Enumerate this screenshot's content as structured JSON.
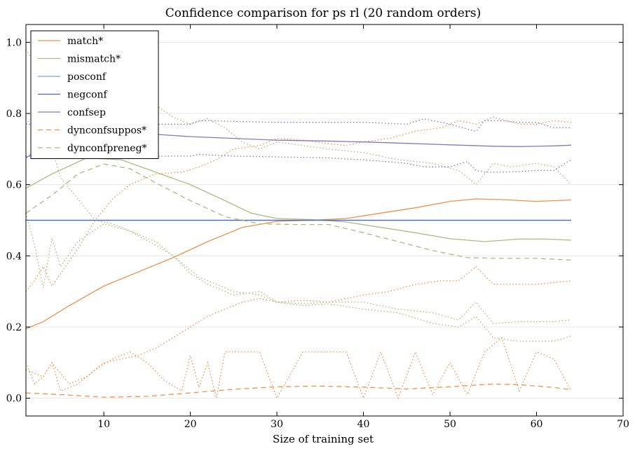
{
  "chart_data": {
    "type": "line",
    "title": "Confidence comparison for ps rl (20 random orders)",
    "xlabel": "Size of training set",
    "ylabel": "",
    "xlim": [
      1,
      70
    ],
    "ylim": [
      -0.05,
      1.05
    ],
    "xticks": [
      10,
      20,
      30,
      40,
      50,
      60,
      70
    ],
    "yticks": [
      0.0,
      0.2,
      0.4,
      0.6,
      0.8,
      1.0
    ],
    "xtick_labels": [
      "10",
      "20",
      "30",
      "40",
      "50",
      "60",
      "70"
    ],
    "ytick_labels": [
      "0.0",
      "0.2",
      "0.4",
      "0.6",
      "0.8",
      "1.0"
    ],
    "grid": "horizontal",
    "legend_position": "top-left",
    "series": [
      {
        "name": "match*",
        "color": "#f0914a",
        "style": "solid",
        "x": [
          1,
          3,
          6,
          10,
          14,
          18,
          22,
          26,
          30,
          34,
          38,
          42,
          46,
          50,
          53,
          56,
          60,
          64
        ],
        "y": [
          0.195,
          0.215,
          0.26,
          0.315,
          0.355,
          0.395,
          0.44,
          0.48,
          0.497,
          0.5,
          0.505,
          0.52,
          0.535,
          0.553,
          0.56,
          0.558,
          0.553,
          0.557
        ]
      },
      {
        "name": "mismatch*",
        "color": "#a9bc82",
        "style": "solid",
        "x": [
          1,
          4,
          8,
          12,
          16,
          20,
          24,
          27,
          30,
          34,
          38,
          42,
          46,
          50,
          54,
          58,
          61,
          64
        ],
        "y": [
          0.59,
          0.63,
          0.675,
          0.67,
          0.635,
          0.6,
          0.555,
          0.52,
          0.505,
          0.502,
          0.495,
          0.48,
          0.465,
          0.448,
          0.44,
          0.447,
          0.447,
          0.444
        ]
      },
      {
        "name": "posconf",
        "color": "#7aa7c7",
        "style": "solid",
        "x": [
          1,
          64
        ],
        "y": [
          0.5,
          0.5
        ]
      },
      {
        "name": "negconf",
        "color": "#4466cc",
        "style": "solid",
        "x": [
          1,
          64
        ],
        "y": [
          0.5,
          0.5
        ]
      },
      {
        "name": "confsep",
        "color": "#8877bb",
        "style": "solid",
        "x": [
          1,
          5,
          10,
          15,
          20,
          25,
          30,
          35,
          40,
          45,
          50,
          55,
          58,
          62,
          64
        ],
        "y": [
          0.675,
          0.74,
          0.745,
          0.743,
          0.735,
          0.73,
          0.725,
          0.723,
          0.72,
          0.716,
          0.712,
          0.708,
          0.707,
          0.709,
          0.711
        ]
      },
      {
        "name": "dynconfsuppos*",
        "color": "#f0914a",
        "style": "dashed",
        "x": [
          1,
          5,
          10,
          15,
          20,
          25,
          30,
          35,
          40,
          45,
          50,
          55,
          58,
          62,
          64
        ],
        "y": [
          0.015,
          0.01,
          0.003,
          0.005,
          0.015,
          0.025,
          0.032,
          0.034,
          0.031,
          0.026,
          0.032,
          0.04,
          0.038,
          0.03,
          0.024
        ]
      },
      {
        "name": "dynconfpreneg*",
        "color": "#a9bc82",
        "style": "dashed",
        "x": [
          1,
          4,
          7,
          10,
          13,
          16,
          20,
          24,
          28,
          32,
          36,
          40,
          44,
          48,
          52,
          56,
          60,
          64
        ],
        "y": [
          0.52,
          0.57,
          0.63,
          0.658,
          0.645,
          0.605,
          0.555,
          0.51,
          0.49,
          0.488,
          0.488,
          0.465,
          0.44,
          0.415,
          0.395,
          0.393,
          0.393,
          0.388
        ]
      }
    ],
    "bands": [
      {
        "color": "#f0914a",
        "x": [
          1,
          2,
          3,
          4,
          5,
          7,
          9,
          11,
          13,
          16,
          19,
          21,
          23,
          25,
          28,
          30,
          33,
          36,
          38,
          40,
          43,
          46,
          49,
          51,
          53,
          55,
          58,
          60,
          62,
          64
        ],
        "y": [
          0.3,
          0.33,
          0.37,
          0.315,
          0.35,
          0.42,
          0.5,
          0.56,
          0.6,
          0.63,
          0.635,
          0.65,
          0.67,
          0.7,
          0.71,
          0.73,
          0.725,
          0.715,
          0.71,
          0.72,
          0.73,
          0.75,
          0.76,
          0.78,
          0.77,
          0.79,
          0.77,
          0.77,
          0.78,
          0.775
        ]
      },
      {
        "color": "#f0914a",
        "x": [
          1,
          2,
          3,
          4,
          6,
          8,
          10,
          12,
          14,
          16,
          18,
          20,
          22,
          24,
          26,
          28,
          30,
          33,
          36,
          38,
          40,
          43,
          46,
          49,
          51,
          53,
          55,
          58,
          60,
          62,
          64
        ],
        "y": [
          0.08,
          0.07,
          0.06,
          0.1,
          0.04,
          0.06,
          0.1,
          0.11,
          0.12,
          0.14,
          0.17,
          0.2,
          0.23,
          0.25,
          0.27,
          0.28,
          0.27,
          0.275,
          0.27,
          0.28,
          0.29,
          0.3,
          0.32,
          0.33,
          0.33,
          0.37,
          0.32,
          0.32,
          0.32,
          0.325,
          0.33
        ]
      },
      {
        "color": "#f0914a",
        "x": [
          1,
          2,
          3,
          4,
          5,
          7,
          9,
          11,
          13,
          15,
          17,
          19,
          20,
          21,
          22,
          23,
          24,
          26,
          28,
          30,
          33,
          36,
          38,
          40,
          42,
          44,
          46,
          48,
          50,
          52,
          54,
          56,
          58,
          60,
          62,
          64
        ],
        "y": [
          0.1,
          0.04,
          0.06,
          0.1,
          0.02,
          0.04,
          0.08,
          0.11,
          0.13,
          0.1,
          0.05,
          0.02,
          0.12,
          0.03,
          0.1,
          0.0,
          0.13,
          0.13,
          0.13,
          0.0,
          0.13,
          0.13,
          0.13,
          0.0,
          0.13,
          0.0,
          0.13,
          0.01,
          0.1,
          0.01,
          0.13,
          0.17,
          0.02,
          0.13,
          0.11,
          0.02
        ]
      },
      {
        "color": "#a9bc82",
        "x": [
          1,
          2,
          3,
          4,
          5,
          7,
          9,
          11,
          13,
          16,
          19,
          21,
          23,
          25,
          28,
          30,
          33,
          36,
          40,
          44,
          48,
          51,
          53,
          55,
          58,
          60,
          62,
          64
        ],
        "y": [
          0.98,
          0.94,
          0.75,
          0.7,
          0.62,
          0.56,
          0.5,
          0.49,
          0.47,
          0.44,
          0.38,
          0.34,
          0.32,
          0.3,
          0.29,
          0.27,
          0.265,
          0.27,
          0.27,
          0.25,
          0.24,
          0.22,
          0.27,
          0.21,
          0.215,
          0.215,
          0.215,
          0.22
        ]
      },
      {
        "color": "#a9bc82",
        "x": [
          1,
          2,
          3,
          4,
          5,
          7,
          10,
          13,
          16,
          18,
          20,
          22,
          25,
          28,
          30,
          33,
          36,
          40,
          44,
          48,
          51,
          53,
          55,
          58,
          60,
          62,
          64
        ],
        "y": [
          0.52,
          0.43,
          0.31,
          0.45,
          0.37,
          0.44,
          0.49,
          0.47,
          0.43,
          0.4,
          0.35,
          0.32,
          0.29,
          0.3,
          0.27,
          0.26,
          0.265,
          0.25,
          0.24,
          0.21,
          0.2,
          0.23,
          0.17,
          0.16,
          0.16,
          0.16,
          0.175
        ]
      },
      {
        "color": "#a9bc82",
        "x": [
          1,
          3,
          6,
          9,
          12,
          15,
          18,
          20,
          22,
          24,
          26,
          28,
          30,
          33,
          36,
          40,
          44,
          48,
          51,
          53,
          55,
          57,
          60,
          62,
          64
        ],
        "y": [
          0.77,
          0.82,
          0.8,
          0.82,
          0.83,
          0.84,
          0.79,
          0.77,
          0.785,
          0.76,
          0.72,
          0.7,
          0.72,
          0.71,
          0.7,
          0.69,
          0.67,
          0.66,
          0.64,
          0.6,
          0.66,
          0.65,
          0.66,
          0.65,
          0.6
        ]
      },
      {
        "color": "#8877bb",
        "x": [
          1,
          5,
          10,
          15,
          20,
          21,
          25,
          30,
          35,
          40,
          45,
          47,
          50,
          53,
          54,
          56,
          58,
          60,
          62,
          64
        ],
        "y": [
          0.77,
          0.77,
          0.77,
          0.77,
          0.77,
          0.78,
          0.778,
          0.775,
          0.775,
          0.775,
          0.77,
          0.785,
          0.77,
          0.75,
          0.78,
          0.78,
          0.775,
          0.775,
          0.76,
          0.76
        ]
      },
      {
        "color": "#8877bb",
        "x": [
          1,
          5,
          10,
          15,
          20,
          21,
          25,
          30,
          35,
          40,
          45,
          47,
          50,
          52,
          53,
          54,
          56,
          58,
          60,
          62,
          64
        ],
        "y": [
          0.68,
          0.68,
          0.68,
          0.68,
          0.68,
          0.685,
          0.68,
          0.678,
          0.676,
          0.67,
          0.66,
          0.65,
          0.65,
          0.665,
          0.64,
          0.635,
          0.635,
          0.637,
          0.64,
          0.64,
          0.67
        ]
      }
    ]
  }
}
